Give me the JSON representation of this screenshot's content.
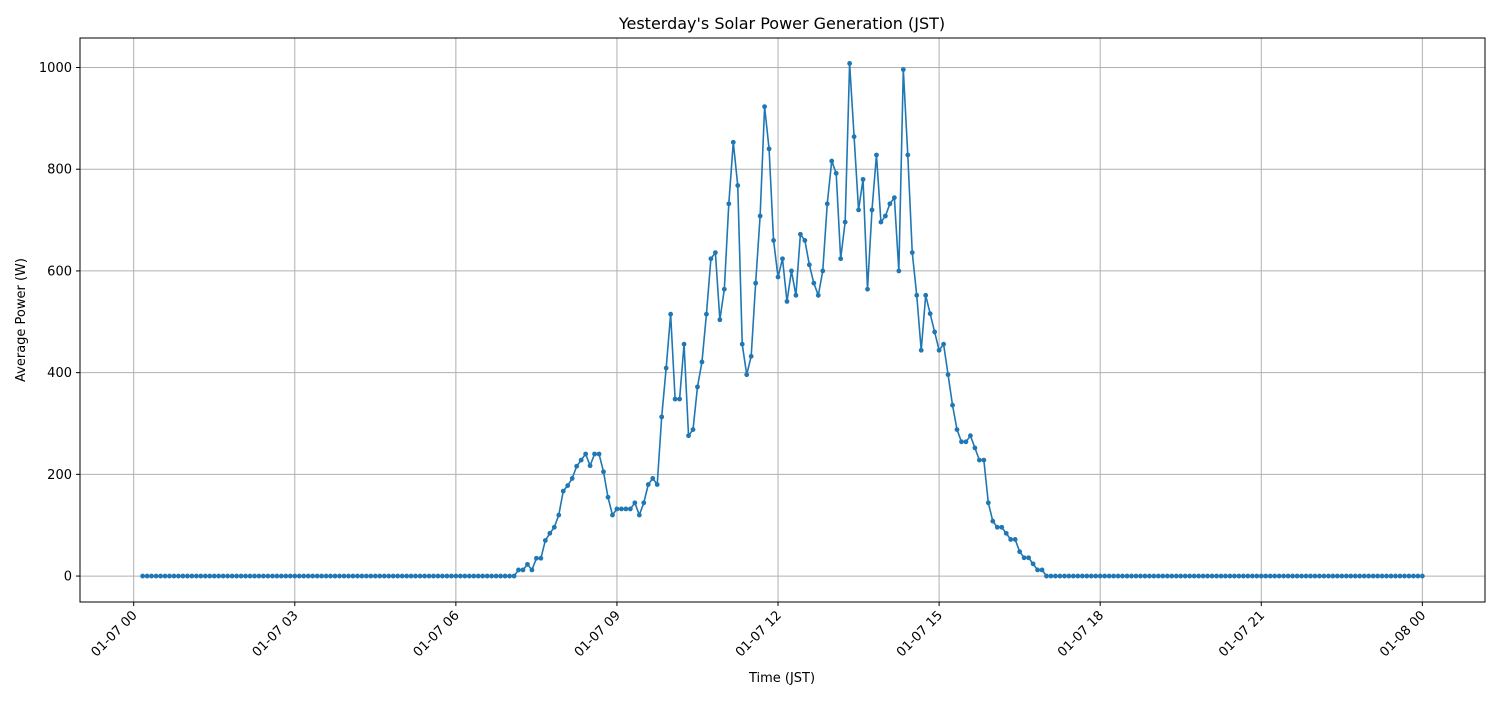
{
  "chart_data": {
    "type": "line",
    "title": "Yesterday's Solar Power Generation (JST)",
    "xlabel": "Time (JST)",
    "ylabel": "Average Power (W)",
    "grid": true,
    "color": "#1f77b4",
    "marker": "circle",
    "xlim": [
      "01-06 23:00",
      "01-08 01:10"
    ],
    "ylim": [
      -51,
      1058
    ],
    "xticks": [
      "01-07 00",
      "01-07 03",
      "01-07 06",
      "01-07 09",
      "01-07 12",
      "01-07 15",
      "01-07 18",
      "01-07 21",
      "01-08 00"
    ],
    "yticks": [
      0,
      200,
      400,
      600,
      800,
      1000
    ],
    "x": [
      "01-07 00:10",
      "01-07 00:15",
      "01-07 00:20",
      "01-07 00:25",
      "01-07 00:30",
      "01-07 00:35",
      "01-07 00:40",
      "01-07 00:45",
      "01-07 00:50",
      "01-07 00:55",
      "01-07 01:00",
      "01-07 01:05",
      "01-07 01:10",
      "01-07 01:15",
      "01-07 01:20",
      "01-07 01:25",
      "01-07 01:30",
      "01-07 01:35",
      "01-07 01:40",
      "01-07 01:45",
      "01-07 01:50",
      "01-07 01:55",
      "01-07 02:00",
      "01-07 02:05",
      "01-07 02:10",
      "01-07 02:15",
      "01-07 02:20",
      "01-07 02:25",
      "01-07 02:30",
      "01-07 02:35",
      "01-07 02:40",
      "01-07 02:45",
      "01-07 02:50",
      "01-07 02:55",
      "01-07 03:00",
      "01-07 03:05",
      "01-07 03:10",
      "01-07 03:15",
      "01-07 03:20",
      "01-07 03:25",
      "01-07 03:30",
      "01-07 03:35",
      "01-07 03:40",
      "01-07 03:45",
      "01-07 03:50",
      "01-07 03:55",
      "01-07 04:00",
      "01-07 04:05",
      "01-07 04:10",
      "01-07 04:15",
      "01-07 04:20",
      "01-07 04:25",
      "01-07 04:30",
      "01-07 04:35",
      "01-07 04:40",
      "01-07 04:45",
      "01-07 04:50",
      "01-07 04:55",
      "01-07 05:00",
      "01-07 05:05",
      "01-07 05:10",
      "01-07 05:15",
      "01-07 05:20",
      "01-07 05:25",
      "01-07 05:30",
      "01-07 05:35",
      "01-07 05:40",
      "01-07 05:45",
      "01-07 05:50",
      "01-07 05:55",
      "01-07 06:00",
      "01-07 06:05",
      "01-07 06:10",
      "01-07 06:15",
      "01-07 06:20",
      "01-07 06:25",
      "01-07 06:30",
      "01-07 06:35",
      "01-07 06:40",
      "01-07 06:45",
      "01-07 06:50",
      "01-07 06:55",
      "01-07 07:00",
      "01-07 07:05",
      "01-07 07:10",
      "01-07 07:15",
      "01-07 07:20",
      "01-07 07:25",
      "01-07 07:30",
      "01-07 07:35",
      "01-07 07:40",
      "01-07 07:45",
      "01-07 07:50",
      "01-07 07:55",
      "01-07 08:00",
      "01-07 08:05",
      "01-07 08:10",
      "01-07 08:15",
      "01-07 08:20",
      "01-07 08:25",
      "01-07 08:30",
      "01-07 08:35",
      "01-07 08:40",
      "01-07 08:45",
      "01-07 08:50",
      "01-07 08:55",
      "01-07 09:00",
      "01-07 09:05",
      "01-07 09:10",
      "01-07 09:15",
      "01-07 09:20",
      "01-07 09:25",
      "01-07 09:30",
      "01-07 09:35",
      "01-07 09:40",
      "01-07 09:45",
      "01-07 09:50",
      "01-07 09:55",
      "01-07 10:00",
      "01-07 10:05",
      "01-07 10:10",
      "01-07 10:15",
      "01-07 10:20",
      "01-07 10:25",
      "01-07 10:30",
      "01-07 10:35",
      "01-07 10:40",
      "01-07 10:45",
      "01-07 10:50",
      "01-07 10:55",
      "01-07 11:00",
      "01-07 11:05",
      "01-07 11:10",
      "01-07 11:15",
      "01-07 11:20",
      "01-07 11:25",
      "01-07 11:30",
      "01-07 11:35",
      "01-07 11:40",
      "01-07 11:45",
      "01-07 11:50",
      "01-07 11:55",
      "01-07 12:00",
      "01-07 12:05",
      "01-07 12:10",
      "01-07 12:15",
      "01-07 12:20",
      "01-07 12:25",
      "01-07 12:30",
      "01-07 12:35",
      "01-07 12:40",
      "01-07 12:45",
      "01-07 12:50",
      "01-07 12:55",
      "01-07 13:00",
      "01-07 13:05",
      "01-07 13:10",
      "01-07 13:15",
      "01-07 13:20",
      "01-07 13:25",
      "01-07 13:30",
      "01-07 13:35",
      "01-07 13:40",
      "01-07 13:45",
      "01-07 13:50",
      "01-07 13:55",
      "01-07 14:00",
      "01-07 14:05",
      "01-07 14:10",
      "01-07 14:15",
      "01-07 14:20",
      "01-07 14:25",
      "01-07 14:30",
      "01-07 14:35",
      "01-07 14:40",
      "01-07 14:45",
      "01-07 14:50",
      "01-07 14:55",
      "01-07 15:00",
      "01-07 15:05",
      "01-07 15:10",
      "01-07 15:15",
      "01-07 15:20",
      "01-07 15:25",
      "01-07 15:30",
      "01-07 15:35",
      "01-07 15:40",
      "01-07 15:45",
      "01-07 15:50",
      "01-07 15:55",
      "01-07 16:00",
      "01-07 16:05",
      "01-07 16:10",
      "01-07 16:15",
      "01-07 16:20",
      "01-07 16:25",
      "01-07 16:30",
      "01-07 16:35",
      "01-07 16:40",
      "01-07 16:45",
      "01-07 16:50",
      "01-07 16:55",
      "01-07 17:00",
      "01-07 17:05",
      "01-07 17:10",
      "01-07 17:15",
      "01-07 17:20",
      "01-07 17:25",
      "01-07 17:30",
      "01-07 17:35",
      "01-07 17:40",
      "01-07 17:45",
      "01-07 17:50",
      "01-07 17:55",
      "01-07 18:00",
      "01-07 18:05",
      "01-07 18:10",
      "01-07 18:15",
      "01-07 18:20",
      "01-07 18:25",
      "01-07 18:30",
      "01-07 18:35",
      "01-07 18:40",
      "01-07 18:45",
      "01-07 18:50",
      "01-07 18:55",
      "01-07 19:00",
      "01-07 19:05",
      "01-07 19:10",
      "01-07 19:15",
      "01-07 19:20",
      "01-07 19:25",
      "01-07 19:30",
      "01-07 19:35",
      "01-07 19:40",
      "01-07 19:45",
      "01-07 19:50",
      "01-07 19:55",
      "01-07 20:00",
      "01-07 20:05",
      "01-07 20:10",
      "01-07 20:15",
      "01-07 20:20",
      "01-07 20:25",
      "01-07 20:30",
      "01-07 20:35",
      "01-07 20:40",
      "01-07 20:45",
      "01-07 20:50",
      "01-07 20:55",
      "01-07 21:00",
      "01-07 21:05",
      "01-07 21:10",
      "01-07 21:15",
      "01-07 21:20",
      "01-07 21:25",
      "01-07 21:30",
      "01-07 21:35",
      "01-07 21:40",
      "01-07 21:45",
      "01-07 21:50",
      "01-07 21:55",
      "01-07 22:00",
      "01-07 22:05",
      "01-07 22:10",
      "01-07 22:15",
      "01-07 22:20",
      "01-07 22:25",
      "01-07 22:30",
      "01-07 22:35",
      "01-07 22:40",
      "01-07 22:45",
      "01-07 22:50",
      "01-07 22:55",
      "01-07 23:00",
      "01-07 23:05",
      "01-07 23:10",
      "01-07 23:15",
      "01-07 23:20",
      "01-07 23:25",
      "01-07 23:30",
      "01-07 23:35",
      "01-07 23:40",
      "01-07 23:45",
      "01-07 23:50",
      "01-07 23:55",
      "01-08 00:00"
    ],
    "y": [
      0,
      0,
      0,
      0,
      0,
      0,
      0,
      0,
      0,
      0,
      0,
      0,
      0,
      0,
      0,
      0,
      0,
      0,
      0,
      0,
      0,
      0,
      0,
      0,
      0,
      0,
      0,
      0,
      0,
      0,
      0,
      0,
      0,
      0,
      0,
      0,
      0,
      0,
      0,
      0,
      0,
      0,
      0,
      0,
      0,
      0,
      0,
      0,
      0,
      0,
      0,
      0,
      0,
      0,
      0,
      0,
      0,
      0,
      0,
      0,
      0,
      0,
      0,
      0,
      0,
      0,
      0,
      0,
      0,
      0,
      0,
      0,
      0,
      0,
      0,
      0,
      0,
      0,
      0,
      0,
      0,
      0,
      0,
      0,
      12,
      12,
      23,
      12,
      35,
      35,
      70,
      84,
      96,
      120,
      167,
      178,
      192,
      216,
      228,
      240,
      217,
      240,
      240,
      205,
      155,
      120,
      132,
      132,
      132,
      132,
      144,
      120,
      144,
      180,
      192,
      180,
      313,
      409,
      515,
      348,
      348,
      456,
      276,
      288,
      372,
      421,
      515,
      624,
      636,
      504,
      564,
      732,
      853,
      768,
      456,
      396,
      432,
      576,
      708,
      923,
      840,
      660,
      588,
      624,
      540,
      600,
      552,
      672,
      660,
      612,
      576,
      552,
      600,
      732,
      816,
      792,
      624,
      696,
      1008,
      864,
      720,
      780,
      564,
      720,
      828,
      696,
      708,
      732,
      744,
      600,
      996,
      828,
      636,
      552,
      444,
      552,
      516,
      480,
      444,
      456,
      396,
      336,
      288,
      264,
      264,
      276,
      252,
      228,
      228,
      144,
      108,
      96,
      96,
      84,
      72,
      72,
      48,
      36,
      36,
      24,
      12,
      12,
      0,
      0,
      0,
      0,
      0,
      0,
      0,
      0,
      0,
      0,
      0,
      0,
      0,
      0,
      0,
      0,
      0,
      0,
      0,
      0,
      0,
      0,
      0,
      0,
      0,
      0,
      0,
      0,
      0,
      0,
      0,
      0,
      0,
      0,
      0,
      0,
      0,
      0,
      0,
      0,
      0,
      0,
      0,
      0,
      0,
      0,
      0,
      0,
      0,
      0,
      0,
      0,
      0,
      0,
      0,
      0,
      0,
      0,
      0,
      0,
      0,
      0,
      0,
      0,
      0,
      0,
      0,
      0,
      0,
      0,
      0,
      0,
      0,
      0,
      0,
      0,
      0,
      0,
      0,
      0,
      0,
      0,
      0,
      0,
      0
    ]
  }
}
